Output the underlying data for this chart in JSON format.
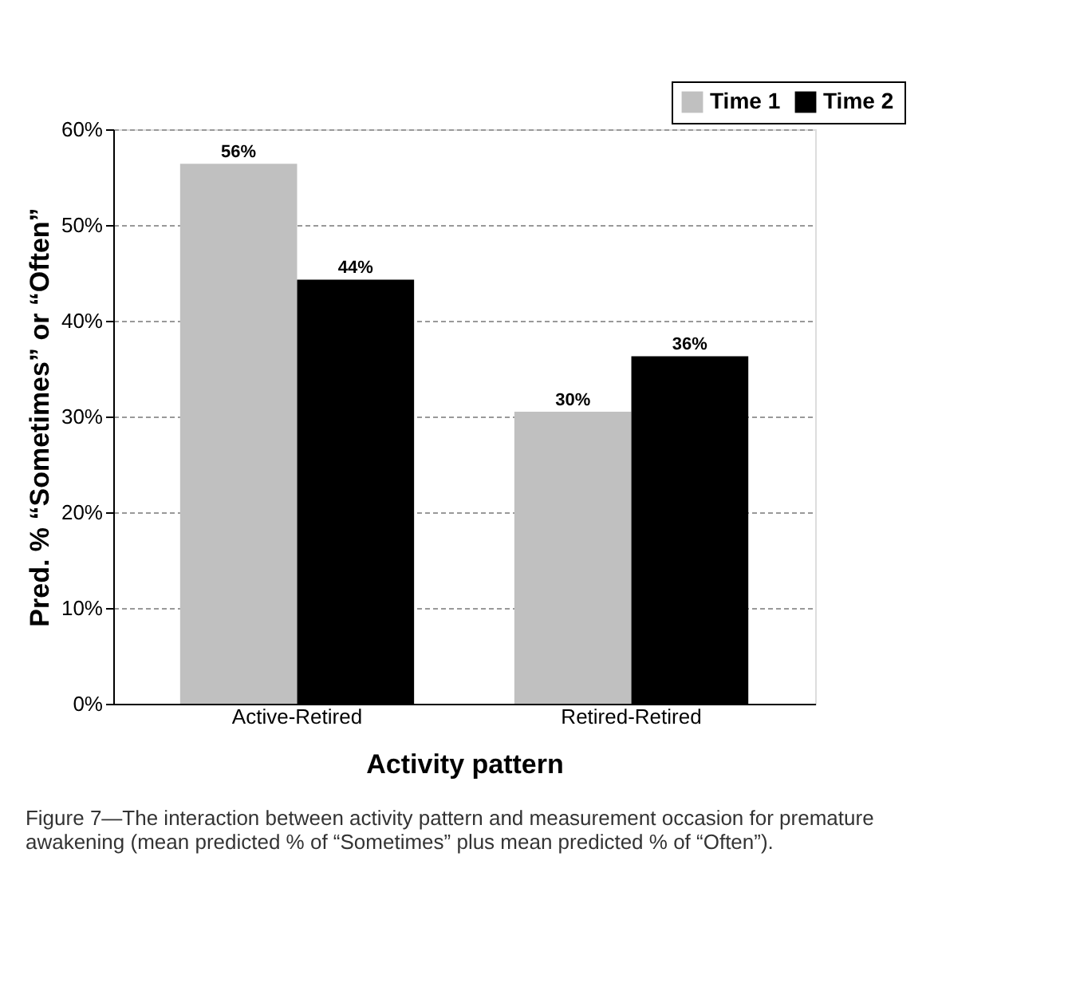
{
  "chart_data": {
    "type": "bar",
    "xlabel": "Activity pattern",
    "ylabel": "Pred. % “Sometimes” or “Often”",
    "categories": [
      "Active-Retired",
      "Retired-Retired"
    ],
    "series": [
      {
        "name": "Time 1",
        "color": "#c0c0c0",
        "values": [
          56.4,
          30.5
        ],
        "value_labels": [
          "56%",
          "30%"
        ]
      },
      {
        "name": "Time 2",
        "color": "#000000",
        "values": [
          44.3,
          36.3
        ],
        "value_labels": [
          "44%",
          "36%"
        ]
      }
    ],
    "ylim": [
      0,
      60
    ],
    "yticks": [
      {
        "value": 0,
        "label": "0%"
      },
      {
        "value": 10,
        "label": "10%"
      },
      {
        "value": 20,
        "label": "20%"
      },
      {
        "value": 30,
        "label": "30%"
      },
      {
        "value": 40,
        "label": "40%"
      },
      {
        "value": 50,
        "label": "50%"
      },
      {
        "value": 60,
        "label": "60%"
      }
    ],
    "grid": "y",
    "legend": "top right",
    "annotations": [
      "Figure 7—The interaction between activity pattern and measurement occasion for premature awakening (mean predicted % of “Sometimes” plus mean predicted % of “Often”)."
    ]
  }
}
